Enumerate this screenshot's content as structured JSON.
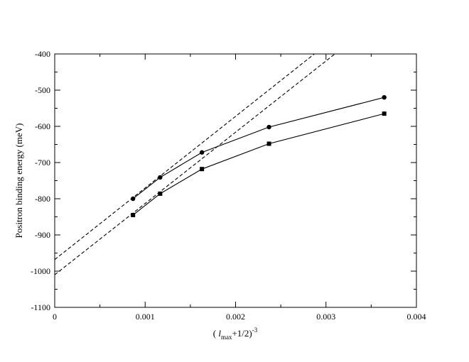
{
  "chart_data": {
    "type": "line",
    "title": "",
    "xlabel": {
      "open": "( ",
      "var": "l",
      "sub": "max",
      "mid": "+1/2)",
      "sup": "-3"
    },
    "ylabel": "Positron binding energy (meV)",
    "xlim": [
      0,
      0.004
    ],
    "ylim": [
      -1100,
      -400
    ],
    "xticks": [
      0,
      0.001,
      0.002,
      0.003,
      0.004
    ],
    "xtick_labels": [
      "0",
      "0.001",
      "0.002",
      "0.003",
      "0.004"
    ],
    "yticks": [
      -1100,
      -1000,
      -900,
      -800,
      -700,
      -600,
      -500,
      -400
    ],
    "ytick_labels": [
      "-1100",
      "-1000",
      "-900",
      "-800",
      "-700",
      "-600",
      "-500",
      "-400"
    ],
    "grid": false,
    "series": [
      {
        "marker": "circle",
        "line": "solid",
        "x": [
          0.000866,
          0.001166,
          0.001628,
          0.00237,
          0.003644
        ],
        "y": [
          -800,
          -741,
          -672,
          -602,
          -520
        ]
      },
      {
        "marker": "square",
        "line": "solid",
        "x": [
          0.000866,
          0.001166,
          0.001628,
          0.00237,
          0.003644
        ],
        "y": [
          -845,
          -786,
          -718,
          -648,
          -565
        ]
      },
      {
        "marker": "none",
        "line": "dashed",
        "x": [
          0,
          0.0032
        ],
        "y": [
          -968,
          -335
        ]
      },
      {
        "marker": "none",
        "line": "dashed",
        "x": [
          0,
          0.0032
        ],
        "y": [
          -1010,
          -380
        ]
      }
    ]
  }
}
